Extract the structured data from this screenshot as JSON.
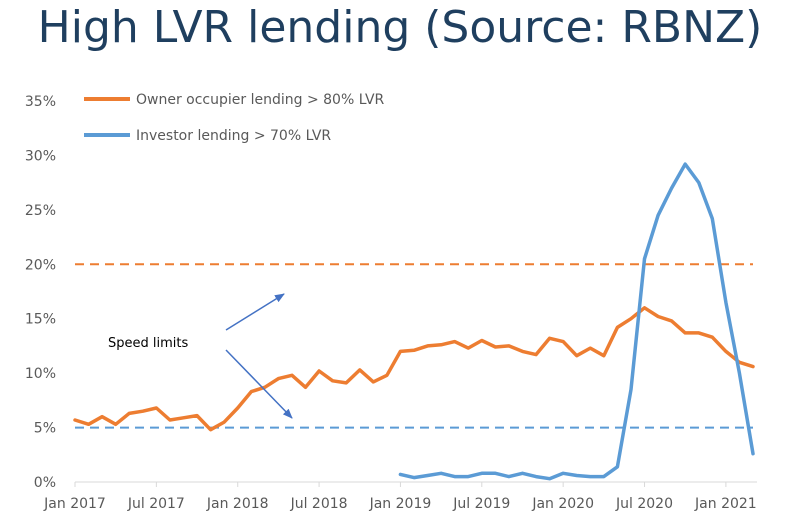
{
  "chart_data": {
    "type": "line",
    "title": "High LVR lending (Source: RBNZ)",
    "xlabel": "",
    "ylabel": "",
    "ylim": [
      0,
      35
    ],
    "y_ticks": [
      "0%",
      "5%",
      "10%",
      "15%",
      "20%",
      "25%",
      "30%",
      "35%"
    ],
    "x_ticks": [
      "Jan 2017",
      "Jul 2017",
      "Jan 2018",
      "Jul 2018",
      "Jan 2019",
      "Jul 2019",
      "Jan 2020",
      "Jul 2020",
      "Jan 2021"
    ],
    "x_start": "2017-01",
    "x_end": "2021-03",
    "grid": false,
    "legend": "top-left",
    "series": [
      {
        "name": "Owner occupier lending > 80% LVR",
        "color": "#ed7d31",
        "start": "2017-01",
        "values": [
          5.7,
          5.3,
          6.0,
          5.3,
          6.3,
          6.5,
          6.8,
          5.7,
          5.9,
          6.1,
          4.8,
          5.5,
          6.8,
          8.3,
          8.7,
          9.5,
          9.8,
          8.7,
          10.2,
          9.3,
          9.1,
          10.3,
          9.2,
          9.8,
          12.0,
          12.1,
          12.5,
          12.6,
          12.9,
          12.3,
          13.0,
          12.4,
          12.5,
          12.0,
          11.7,
          13.2,
          12.9,
          11.6,
          12.3,
          11.6,
          14.2,
          15.0,
          16.0,
          15.2,
          14.8,
          13.7,
          13.7,
          13.3,
          12.0,
          11.0,
          10.6
        ]
      },
      {
        "name": "Investor lending > 70% LVR",
        "color": "#5b9bd5",
        "start": "2019-01",
        "values": [
          0.7,
          0.4,
          0.6,
          0.8,
          0.5,
          0.5,
          0.8,
          0.8,
          0.5,
          0.8,
          0.5,
          0.3,
          0.8,
          0.6,
          0.5,
          0.5,
          1.4,
          8.5,
          20.5,
          24.5,
          27.0,
          29.2,
          27.5,
          24.2,
          16.5,
          10.0,
          2.6
        ]
      }
    ],
    "reference_lines": [
      {
        "value": 20,
        "color": "#ed7d31",
        "style": "dashed"
      },
      {
        "value": 5,
        "color": "#5b9bd5",
        "style": "dashed"
      }
    ],
    "annotation": {
      "text": "Speed limits",
      "color": "#4472c4"
    }
  }
}
